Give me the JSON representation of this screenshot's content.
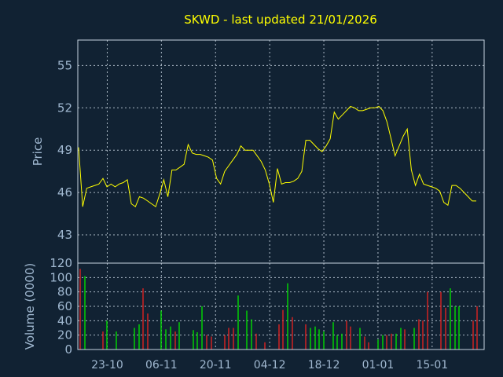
{
  "chart_data": [
    {
      "type": "line",
      "title": "SKWD - last updated 21/01/2026",
      "ylabel": "Price",
      "ylim": [
        41.0,
        56.8
      ],
      "yticks": [
        43,
        46,
        49,
        52,
        55
      ],
      "grid": true,
      "colors": {
        "line": "#ffff00",
        "background": "#112233",
        "grid": "#c8d4e0",
        "text": "#a0b8d0",
        "title": "#ffff00"
      },
      "series": [
        {
          "values": [
            49.2,
            45.0,
            46.3,
            46.4,
            46.5,
            46.6,
            47.0,
            46.4,
            46.6,
            46.4,
            46.6,
            46.7,
            46.9,
            45.2,
            45.0,
            45.7,
            45.6,
            45.4,
            45.2,
            45.0,
            45.9,
            46.9,
            45.7,
            47.6,
            47.6,
            47.8,
            48.0,
            49.4,
            48.8,
            48.7,
            48.7,
            48.6,
            48.5,
            48.3,
            47.0,
            46.6,
            47.5,
            47.9,
            48.3,
            48.7,
            49.3,
            49.0,
            49.0,
            49.0,
            48.6,
            48.2,
            47.6,
            46.6,
            45.3,
            47.7,
            46.6,
            46.7,
            46.7,
            46.8,
            47.0,
            47.5,
            49.7,
            49.7,
            49.4,
            49.1,
            48.9,
            49.3,
            49.8,
            51.7,
            51.2,
            51.5,
            51.8,
            52.1,
            52.0,
            51.8,
            51.8,
            51.9,
            52.0,
            52.0,
            52.1,
            51.8,
            51.0,
            49.8,
            48.6,
            49.3,
            50.0,
            50.5,
            47.6,
            46.5,
            47.3,
            46.6,
            46.5,
            46.4,
            46.3,
            46.1,
            45.3,
            45.1,
            46.5,
            46.5,
            46.3,
            46.0,
            45.7,
            45.4,
            45.4
          ]
        }
      ]
    },
    {
      "type": "bar",
      "ylabel": "Volume (0000)",
      "ylim": [
        0,
        120
      ],
      "yticks": [
        0,
        20,
        40,
        60,
        80,
        100,
        120
      ],
      "grid": true,
      "x_tick_labels": [
        "23-10",
        "06-11",
        "20-11",
        "04-12",
        "18-12",
        "01-01",
        "15-01"
      ],
      "x_tick_index": [
        6,
        18,
        30,
        42,
        54,
        66,
        78
      ],
      "colors": {
        "up": "#00dd00",
        "down": "#dd2222"
      },
      "values": [
        112,
        102,
        0,
        0,
        0,
        25,
        40,
        0,
        25,
        0,
        0,
        0,
        30,
        35,
        85,
        50,
        0,
        0,
        54,
        28,
        32,
        25,
        38,
        0,
        0,
        27,
        24,
        60,
        20,
        18,
        0,
        0,
        20,
        30,
        30,
        75,
        0,
        54,
        42,
        22,
        0,
        10,
        0,
        0,
        35,
        55,
        92,
        45,
        0,
        0,
        35,
        30,
        32,
        28,
        25,
        0,
        38,
        20,
        22,
        40,
        32,
        0,
        30,
        18,
        10,
        0,
        14,
        20,
        20,
        22,
        22,
        30,
        28,
        0,
        30,
        42,
        40,
        80,
        0,
        0,
        80,
        58,
        85,
        60,
        60,
        0,
        0,
        40,
        60,
        0
      ],
      "directions": [
        "down",
        "up",
        "up",
        "up",
        "up",
        "down",
        "up",
        "up",
        "up",
        "up",
        "down",
        "up",
        "up",
        "up",
        "down",
        "down",
        "up",
        "up",
        "up",
        "up",
        "up",
        "down",
        "up",
        "up",
        "up",
        "up",
        "up",
        "up",
        "down",
        "down",
        "up",
        "up",
        "down",
        "down",
        "down",
        "up",
        "up",
        "up",
        "up",
        "down",
        "up",
        "down",
        "up",
        "up",
        "down",
        "down",
        "up",
        "down",
        "up",
        "up",
        "down",
        "up",
        "up",
        "up",
        "up",
        "up",
        "up",
        "up",
        "up",
        "down",
        "down",
        "up",
        "up",
        "down",
        "down",
        "up",
        "up",
        "up",
        "down",
        "down",
        "up",
        "up",
        "down",
        "up",
        "up",
        "down",
        "down",
        "down",
        "up",
        "up",
        "down",
        "down",
        "up",
        "up",
        "up",
        "up",
        "up",
        "down",
        "down",
        "up"
      ]
    }
  ]
}
